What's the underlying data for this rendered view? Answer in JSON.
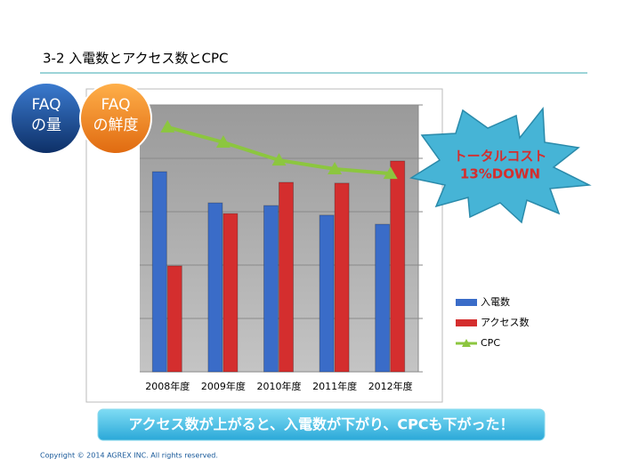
{
  "slide": {
    "title": "3-2 入電数とアクセス数とCPC",
    "badges": [
      {
        "line1": "FAQ",
        "line2": "の量"
      },
      {
        "line1": "FAQ",
        "line2": "の鮮度"
      }
    ],
    "callout": {
      "line1": "トータルコスト",
      "line2": "13%DOWN"
    },
    "banner": "アクセス数が上がると、入電数が下がり、CPCも下がった！",
    "copyright": "Copyright © 2014 AGREX INC. All rights reserved."
  },
  "chart_data": {
    "type": "bar",
    "categories": [
      "2008年度",
      "2009年度",
      "2010年度",
      "2011年度",
      "2012年度"
    ],
    "series": [
      {
        "name": "入電数",
        "type": "bar",
        "color": "#3a6cc8",
        "values": [
          75,
          63.3,
          62.3,
          58.7,
          55.3
        ]
      },
      {
        "name": "アクセス数",
        "type": "bar",
        "color": "#d42e2e",
        "values": [
          39.7,
          59.3,
          71,
          70.7,
          79
        ]
      },
      {
        "name": "CPC",
        "type": "line",
        "color": "#8cc63f",
        "values": [
          91.7,
          86,
          79.3,
          76,
          74.3
        ]
      }
    ],
    "ylim": [
      0,
      100
    ],
    "yticks": [
      0,
      20,
      40,
      60,
      80,
      100
    ],
    "grid": true
  }
}
